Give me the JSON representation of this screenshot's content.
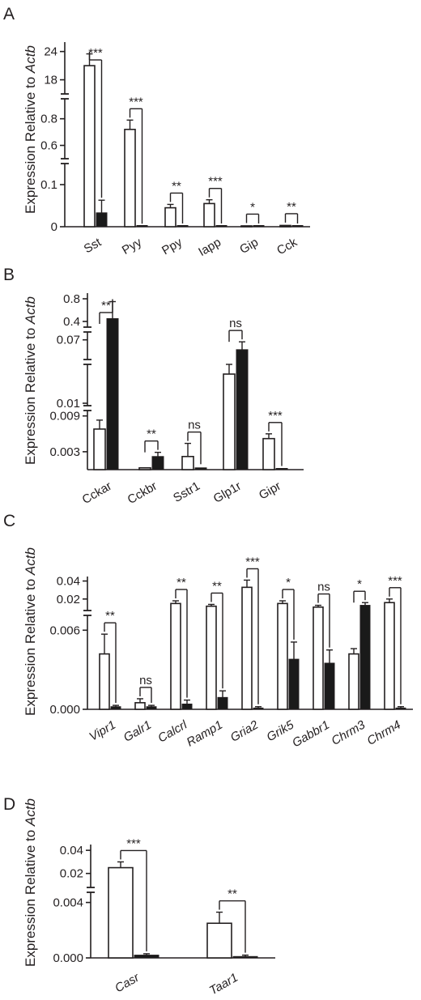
{
  "figure": {
    "ylabel_prefix": "Expression Relative to ",
    "ylabel_gene": "Actb",
    "colors": {
      "open_bar": "#ffffff",
      "filled_bar": "#1a1a1a",
      "stroke": "#231f20"
    }
  },
  "chart_data": [
    {
      "panel": "A",
      "type": "bar",
      "categories": [
        "Sst",
        "Pyy",
        "Ppy",
        "Iapp",
        "Gip",
        "Cck"
      ],
      "italic_categories": false,
      "broken_axis": true,
      "y_ticks": [
        "24",
        "18",
        "0.8",
        "0.6",
        "0.1",
        "0"
      ],
      "series": [
        {
          "style": "open",
          "values": [
            21.0,
            0.72,
            0.045,
            0.055,
            0.002,
            0.003
          ],
          "errors": [
            2.5,
            0.07,
            0.008,
            0.009,
            0.001,
            0.001
          ]
        },
        {
          "style": "filled",
          "values": [
            0.033,
            0.001,
            0.001,
            0.001,
            0.0005,
            0.0005
          ],
          "errors": [
            0.03,
            0.0005,
            0.0005,
            0.0005,
            0.0003,
            0.0003
          ]
        }
      ],
      "significance": [
        "***",
        "***",
        "**",
        "***",
        "*",
        "**"
      ]
    },
    {
      "panel": "B",
      "type": "bar",
      "categories": [
        "Cckar",
        "Cckbr",
        "Sstr1",
        "Glp1r",
        "Gipr"
      ],
      "italic_categories": false,
      "broken_axis": true,
      "y_ticks": [
        "0.8",
        "0.4",
        "0.07",
        "0.01",
        "0.009",
        "0.003"
      ],
      "series": [
        {
          "style": "open",
          "values": [
            0.0068,
            0.0003,
            0.0022,
            0.013,
            0.0052
          ],
          "errors": [
            0.0015,
            0.0001,
            0.0022,
            0.001,
            0.0008
          ]
        },
        {
          "style": "filled",
          "values": [
            0.45,
            0.0022,
            0.0003,
            0.045,
            0.0001
          ],
          "errors": [
            0.3,
            0.0007,
            0.0002,
            0.02,
            0.0001
          ]
        }
      ],
      "significance": [
        "**",
        "**",
        "ns",
        "ns",
        "***"
      ]
    },
    {
      "panel": "C",
      "type": "bar",
      "categories": [
        "Vipr1",
        "Galr1",
        "Calcrl",
        "Ramp1",
        "Gria2",
        "Grik5",
        "Gabbr1",
        "Chrm3",
        "Chrm4"
      ],
      "italic_categories": true,
      "broken_axis": true,
      "y_ticks": [
        "0.04",
        "0.02",
        "0.006",
        "0.000"
      ],
      "series": [
        {
          "style": "open",
          "values": [
            0.0042,
            0.0005,
            0.015,
            0.012,
            0.033,
            0.015,
            0.011,
            0.0042,
            0.016
          ],
          "errors": [
            0.0015,
            0.0003,
            0.003,
            0.002,
            0.008,
            0.003,
            0.002,
            0.0004,
            0.004
          ]
        },
        {
          "style": "filled",
          "values": [
            0.0002,
            0.0002,
            0.0004,
            0.0009,
            0.0001,
            0.0038,
            0.0035,
            0.013,
            0.0001
          ],
          "errors": [
            0.0001,
            0.0001,
            0.0003,
            0.0005,
            0.0001,
            0.0013,
            0.001,
            0.003,
            0.0001
          ]
        }
      ],
      "significance": [
        "**",
        "ns",
        "**",
        "**",
        "***",
        "*",
        "ns",
        "*",
        "***"
      ]
    },
    {
      "panel": "D",
      "type": "bar",
      "categories": [
        "Casr",
        "Taar1"
      ],
      "italic_categories": true,
      "broken_axis": true,
      "y_ticks": [
        "0.04",
        "0.02",
        "0.004",
        "0.000"
      ],
      "series": [
        {
          "style": "open",
          "values": [
            0.025,
            0.0025
          ],
          "errors": [
            0.005,
            0.0008
          ]
        },
        {
          "style": "filled",
          "values": [
            0.0002,
            0.0001
          ],
          "errors": [
            0.0001,
            0.0001
          ]
        }
      ],
      "significance": [
        "***",
        "**"
      ]
    }
  ]
}
